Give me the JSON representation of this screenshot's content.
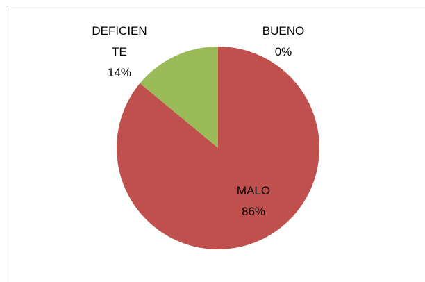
{
  "chart_data": {
    "type": "pie",
    "categories": [
      "BUENO",
      "MALO",
      "DEFICIENTE"
    ],
    "values": [
      0,
      86,
      14
    ],
    "value_labels": [
      "0%",
      "86%",
      "14%"
    ],
    "colors": [
      "#4f81bd",
      "#c0504d",
      "#9bbb59"
    ]
  }
}
